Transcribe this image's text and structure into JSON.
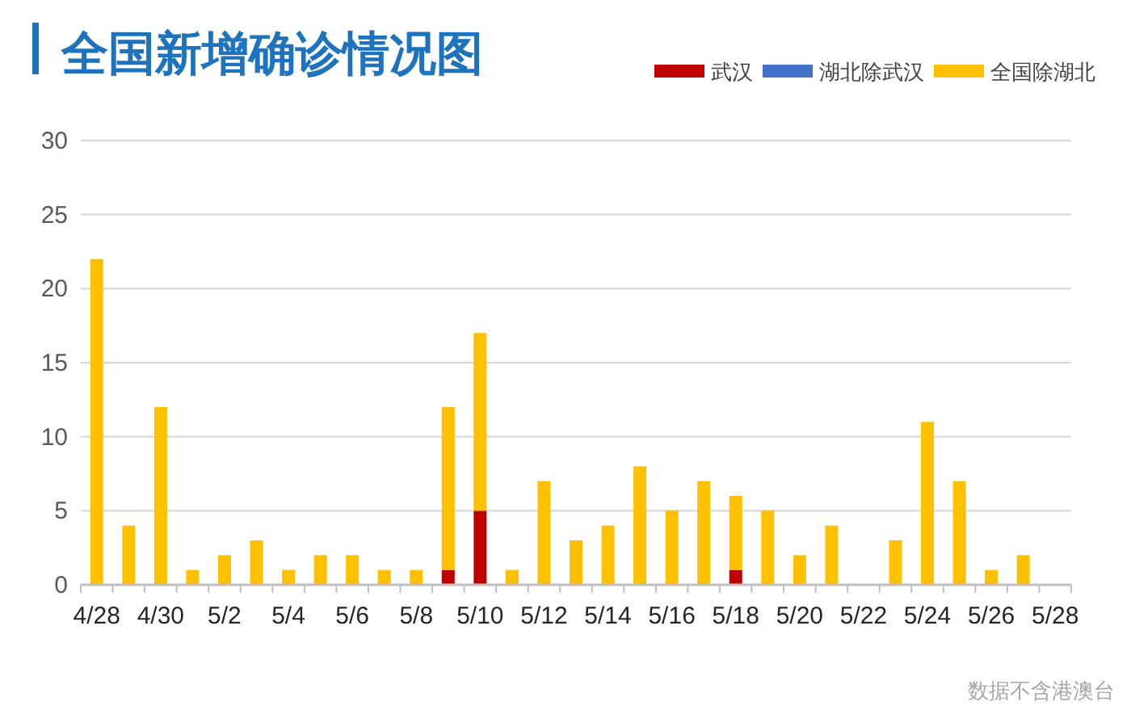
{
  "chart_data": {
    "type": "bar",
    "title": "全国新增确诊情况图",
    "categories": [
      "4/28",
      null,
      "4/30",
      null,
      "5/2",
      null,
      "5/4",
      null,
      "5/6",
      null,
      "5/8",
      null,
      "5/10",
      null,
      "5/12",
      null,
      "5/14",
      null,
      "5/16",
      null,
      "5/18",
      null,
      "5/20",
      null,
      "5/22",
      null,
      "5/24",
      null,
      "5/26",
      null,
      "5/28"
    ],
    "series": [
      {
        "name": "武汉",
        "color": "#c00000",
        "values": [
          0,
          0,
          0,
          0,
          0,
          0,
          0,
          0,
          0,
          0,
          0,
          1,
          5,
          0,
          0,
          0,
          0,
          0,
          0,
          0,
          1,
          0,
          0,
          0,
          0,
          0,
          0,
          0,
          0,
          0,
          0
        ]
      },
      {
        "name": "湖北除武汉",
        "color": "#4472c4",
        "values": [
          0,
          0,
          0,
          0,
          0,
          0,
          0,
          0,
          0,
          0,
          0,
          0,
          0,
          0,
          0,
          0,
          0,
          0,
          0,
          0,
          0,
          0,
          0,
          0,
          0,
          0,
          0,
          0,
          0,
          0,
          0
        ]
      },
      {
        "name": "全国除湖北",
        "color": "#ffc000",
        "values": [
          22,
          4,
          12,
          1,
          2,
          3,
          1,
          2,
          2,
          1,
          1,
          11,
          12,
          1,
          7,
          3,
          4,
          8,
          5,
          7,
          5,
          5,
          2,
          4,
          0,
          3,
          11,
          7,
          1,
          2,
          0
        ]
      }
    ],
    "stacked": true,
    "ylim": [
      0,
      30
    ],
    "yticks": [
      0,
      5,
      10,
      15,
      20,
      25,
      30
    ],
    "grid": "y",
    "legend": "top right",
    "annotations": [
      "数据不含港澳台"
    ]
  }
}
